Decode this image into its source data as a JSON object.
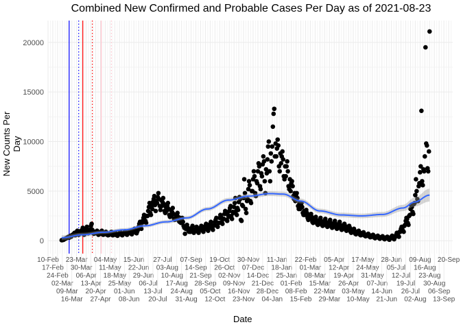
{
  "chart_data": {
    "type": "scatter",
    "title": "Combined New Confirmed and Probable Cases Per Day as of 2021-08-23",
    "xlabel": "Date",
    "ylabel": "New Counts Per Day",
    "xlim": [
      "2020-02-10",
      "2021-09-26"
    ],
    "ylim": [
      -1300,
      22200
    ],
    "yticks": [
      0,
      5000,
      10000,
      15000,
      20000
    ],
    "xticks": [
      "2020-02-10",
      "2020-02-17",
      "2020-02-24",
      "2020-03-02",
      "2020-03-09",
      "2020-03-16",
      "2020-03-23",
      "2020-03-30",
      "2020-04-06",
      "2020-04-13",
      "2020-04-20",
      "2020-04-27",
      "2020-05-04",
      "2020-05-11",
      "2020-05-18",
      "2020-05-25",
      "2020-06-01",
      "2020-06-08",
      "2020-06-15",
      "2020-06-22",
      "2020-06-29",
      "2020-07-06",
      "2020-07-13",
      "2020-07-20",
      "2020-07-27",
      "2020-08-03",
      "2020-08-10",
      "2020-08-17",
      "2020-08-24",
      "2020-08-31",
      "2020-09-07",
      "2020-09-14",
      "2020-09-21",
      "2020-09-28",
      "2020-10-05",
      "2020-10-12",
      "2020-10-19",
      "2020-10-26",
      "2020-11-02",
      "2020-11-09",
      "2020-11-16",
      "2020-11-23",
      "2020-11-30",
      "2020-12-07",
      "2020-12-14",
      "2020-12-21",
      "2020-12-28",
      "2021-01-04",
      "2021-01-11",
      "2021-01-18",
      "2021-01-25",
      "2021-02-01",
      "2021-02-08",
      "2021-02-15",
      "2021-02-22",
      "2021-03-01",
      "2021-03-08",
      "2021-03-15",
      "2021-03-22",
      "2021-03-29",
      "2021-04-05",
      "2021-04-12",
      "2021-04-19",
      "2021-04-26",
      "2021-05-03",
      "2021-05-10",
      "2021-05-17",
      "2021-05-24",
      "2021-05-31",
      "2021-06-07",
      "2021-06-14",
      "2021-06-21",
      "2021-06-28",
      "2021-07-05",
      "2021-07-12",
      "2021-07-19",
      "2021-07-26",
      "2021-08-02",
      "2021-08-09",
      "2021-08-16",
      "2021-08-23",
      "2021-08-30",
      "2021-09-06",
      "2021-09-13",
      "2021-09-20"
    ],
    "month_names": [
      "Jan",
      "Feb",
      "Mar",
      "Apr",
      "May",
      "Jun",
      "Jul",
      "Aug",
      "Sep",
      "Oct",
      "Nov",
      "Dec"
    ],
    "grid": true,
    "point_color": "#000000",
    "trend_color": "#3366FF",
    "band_color": "#999999",
    "weeks": [
      {
        "week_of": "2020-03-01",
        "daily": [
          50,
          60,
          80,
          100,
          150,
          200,
          220
        ]
      },
      {
        "week_of": "2020-03-08",
        "daily": [
          250,
          300,
          350,
          400,
          300,
          450,
          500
        ]
      },
      {
        "week_of": "2020-03-15",
        "daily": [
          400,
          500,
          600,
          650,
          700,
          800,
          550
        ]
      },
      {
        "week_of": "2020-03-22",
        "daily": [
          700,
          900,
          1000,
          850,
          600,
          750,
          950
        ]
      },
      {
        "week_of": "2020-03-29",
        "daily": [
          800,
          900,
          1100,
          1300,
          700,
          600,
          1000
        ]
      },
      {
        "week_of": "2020-04-05",
        "daily": [
          900,
          1200,
          1400,
          1000,
          750,
          800,
          1100
        ]
      },
      {
        "week_of": "2020-04-12",
        "daily": [
          900,
          1500,
          1700,
          1100,
          800,
          700,
          900
        ]
      },
      {
        "week_of": "2020-04-19",
        "daily": [
          750,
          800,
          900,
          1000,
          700,
          600,
          850
        ]
      },
      {
        "week_of": "2020-04-26",
        "daily": [
          800,
          700,
          900,
          1000,
          650,
          600,
          700
        ]
      },
      {
        "week_of": "2020-05-03",
        "daily": [
          650,
          750,
          900,
          800,
          600,
          550,
          700
        ]
      },
      {
        "week_of": "2020-05-10",
        "daily": [
          600,
          700,
          800,
          900,
          650,
          550,
          600
        ]
      },
      {
        "week_of": "2020-05-17",
        "daily": [
          600,
          750,
          850,
          700,
          550,
          500,
          650
        ]
      },
      {
        "week_of": "2020-05-24",
        "daily": [
          650,
          700,
          900,
          800,
          600,
          550,
          700
        ]
      },
      {
        "week_of": "2020-05-31",
        "daily": [
          700,
          800,
          950,
          850,
          650,
          600,
          750
        ]
      },
      {
        "week_of": "2020-06-07",
        "daily": [
          800,
          900,
          1000,
          950,
          700,
          650,
          850
        ]
      },
      {
        "week_of": "2020-06-14",
        "daily": [
          900,
          1100,
          1200,
          1000,
          800,
          750,
          950
        ]
      },
      {
        "week_of": "2020-06-21",
        "daily": [
          1100,
          1400,
          1700,
          1900,
          1500,
          1200,
          1800
        ]
      },
      {
        "week_of": "2020-06-28",
        "daily": [
          2000,
          2300,
          2600,
          2400,
          2000,
          1800,
          2500
        ]
      },
      {
        "week_of": "2020-07-05",
        "daily": [
          2500,
          3000,
          3400,
          3800,
          2800,
          2600,
          3500
        ]
      },
      {
        "week_of": "2020-07-12",
        "daily": [
          3200,
          3900,
          4200,
          4500,
          3600,
          3000,
          4000
        ]
      },
      {
        "week_of": "2020-07-19",
        "daily": [
          3800,
          4400,
          4800,
          4200,
          3500,
          3100,
          4100
        ]
      },
      {
        "week_of": "2020-07-26",
        "daily": [
          3500,
          3900,
          4300,
          3700,
          3000,
          2800,
          3400
        ]
      },
      {
        "week_of": "2020-08-02",
        "daily": [
          3000,
          3500,
          3800,
          3200,
          2600,
          2400,
          3100
        ]
      },
      {
        "week_of": "2020-08-09",
        "daily": [
          2500,
          2900,
          3300,
          2700,
          2200,
          2100,
          2600
        ]
      },
      {
        "week_of": "2020-08-16",
        "daily": [
          2300,
          2600,
          2800,
          2400,
          2000,
          1900,
          2300
        ]
      },
      {
        "week_of": "2020-08-23",
        "daily": [
          1800,
          2100,
          2300,
          1900,
          1500,
          1300,
          700
        ]
      },
      {
        "week_of": "2020-08-30",
        "daily": [
          1200,
          1400,
          1600,
          1300,
          1000,
          900,
          1200
        ]
      },
      {
        "week_of": "2020-09-06",
        "daily": [
          900,
          1100,
          1300,
          1500,
          1000,
          800,
          1100
        ]
      },
      {
        "week_of": "2020-09-13",
        "daily": [
          1000,
          1200,
          1400,
          1300,
          900,
          800,
          1100
        ]
      },
      {
        "week_of": "2020-09-20",
        "daily": [
          1100,
          1300,
          1500,
          1400,
          1000,
          900,
          1200
        ]
      },
      {
        "week_of": "2020-09-27",
        "daily": [
          1200,
          1500,
          1700,
          1500,
          1100,
          1000,
          1300
        ]
      },
      {
        "week_of": "2020-10-04",
        "daily": [
          1400,
          1700,
          1900,
          1600,
          1200,
          1100,
          1500
        ]
      },
      {
        "week_of": "2020-10-11",
        "daily": [
          1600,
          1900,
          2100,
          2300,
          1500,
          1400,
          1800
        ]
      },
      {
        "week_of": "2020-10-18",
        "daily": [
          1800,
          2300,
          2600,
          2400,
          1900,
          1700,
          2200
        ]
      },
      {
        "week_of": "2020-10-25",
        "daily": [
          2200,
          2700,
          3000,
          2800,
          2100,
          2000,
          2600
        ]
      },
      {
        "week_of": "2020-11-01",
        "daily": [
          2400,
          3000,
          3300,
          3500,
          2500,
          2200,
          2900
        ]
      },
      {
        "week_of": "2020-11-08",
        "daily": [
          2800,
          3400,
          3800,
          4300,
          3000,
          2600,
          3300
        ]
      },
      {
        "week_of": "2020-11-15",
        "daily": [
          3100,
          3900,
          4400,
          4200,
          2100,
          2000,
          3600
        ]
      },
      {
        "week_of": "2020-11-22",
        "daily": [
          3500,
          4300,
          6200,
          4800,
          3200,
          2800,
          4000
        ]
      },
      {
        "week_of": "2020-11-29",
        "daily": [
          4200,
          5200,
          6000,
          5600,
          4000,
          3800,
          5000
        ]
      },
      {
        "week_of": "2020-12-06",
        "daily": [
          5000,
          6200,
          7000,
          6500,
          4800,
          4500,
          6000
        ]
      },
      {
        "week_of": "2020-12-13",
        "daily": [
          5800,
          7000,
          7800,
          7500,
          5500,
          5200,
          6800
        ]
      },
      {
        "week_of": "2020-12-20",
        "daily": [
          6500,
          7700,
          8500,
          8000,
          6000,
          4800,
          7200
        ]
      },
      {
        "week_of": "2020-12-27",
        "daily": [
          6800,
          8200,
          9500,
          10000,
          7000,
          6000,
          8800
        ]
      },
      {
        "week_of": "2021-01-03",
        "daily": [
          8000,
          9500,
          11500,
          12800,
          13300,
          8500,
          9800
        ]
      },
      {
        "week_of": "2021-01-10",
        "daily": [
          8500,
          9300,
          10200,
          9600,
          7500,
          7000,
          8800
        ]
      },
      {
        "week_of": "2021-01-17",
        "daily": [
          7800,
          8500,
          9000,
          8200,
          6500,
          6200,
          7500
        ]
      },
      {
        "week_of": "2021-01-24",
        "daily": [
          6500,
          7500,
          8000,
          7000,
          5500,
          5200,
          6200
        ]
      },
      {
        "week_of": "2021-01-31",
        "daily": [
          5000,
          5800,
          6000,
          5500,
          4500,
          4200,
          4800
        ]
      },
      {
        "week_of": "2021-02-07",
        "daily": [
          4000,
          4500,
          4800,
          4300,
          3500,
          3200,
          3800
        ]
      },
      {
        "week_of": "2021-02-14",
        "daily": [
          3200,
          3600,
          3800,
          3400,
          2800,
          2600,
          3000
        ]
      },
      {
        "week_of": "2021-02-21",
        "daily": [
          2600,
          2900,
          3100,
          2800,
          2300,
          2100,
          2500
        ]
      },
      {
        "week_of": "2021-02-28",
        "daily": [
          2200,
          2500,
          2700,
          2400,
          1900,
          1800,
          2100
        ]
      },
      {
        "week_of": "2021-03-07",
        "daily": [
          1900,
          2200,
          2400,
          2100,
          1700,
          1600,
          1900
        ]
      },
      {
        "week_of": "2021-03-14",
        "daily": [
          1800,
          2100,
          2300,
          2000,
          1600,
          1500,
          1800
        ]
      },
      {
        "week_of": "2021-03-21",
        "daily": [
          1700,
          2000,
          2200,
          1900,
          1500,
          1400,
          1700
        ]
      },
      {
        "week_of": "2021-03-28",
        "daily": [
          1600,
          1900,
          2100,
          1800,
          1400,
          1300,
          1600
        ]
      },
      {
        "week_of": "2021-04-04",
        "daily": [
          1500,
          1800,
          2000,
          1700,
          1300,
          1200,
          1500
        ]
      },
      {
        "week_of": "2021-04-11",
        "daily": [
          1400,
          1700,
          1900,
          1600,
          1200,
          1100,
          1400
        ]
      },
      {
        "week_of": "2021-04-18",
        "daily": [
          1300,
          1500,
          1700,
          1500,
          1100,
          1000,
          1300
        ]
      },
      {
        "week_of": "2021-04-25",
        "daily": [
          1100,
          1300,
          1500,
          1300,
          900,
          800,
          1100
        ]
      },
      {
        "week_of": "2021-05-02",
        "daily": [
          900,
          1100,
          1200,
          1000,
          700,
          650,
          900
        ]
      },
      {
        "week_of": "2021-05-09",
        "daily": [
          750,
          900,
          1000,
          850,
          600,
          550,
          750
        ]
      },
      {
        "week_of": "2021-05-16",
        "daily": [
          600,
          750,
          850,
          700,
          500,
          450,
          600
        ]
      },
      {
        "week_of": "2021-05-23",
        "daily": [
          500,
          600,
          700,
          600,
          400,
          350,
          500
        ]
      },
      {
        "week_of": "2021-05-30",
        "daily": [
          400,
          500,
          600,
          500,
          300,
          250,
          400
        ]
      },
      {
        "week_of": "2021-06-06",
        "daily": [
          350,
          450,
          500,
          400,
          250,
          200,
          350
        ]
      },
      {
        "week_of": "2021-06-13",
        "daily": [
          300,
          400,
          450,
          350,
          200,
          150,
          300
        ]
      },
      {
        "week_of": "2021-06-20",
        "daily": [
          250,
          350,
          400,
          300,
          150,
          100,
          250
        ]
      },
      {
        "week_of": "2021-06-27",
        "daily": [
          300,
          400,
          500,
          350,
          200,
          150,
          400
        ]
      },
      {
        "week_of": "2021-07-04",
        "daily": [
          400,
          600,
          800,
          700,
          500,
          400,
          900
        ]
      },
      {
        "week_of": "2021-07-11",
        "daily": [
          900,
          1200,
          1400,
          1300,
          1000,
          900,
          1500
        ]
      },
      {
        "week_of": "2021-07-18",
        "daily": [
          1600,
          2000,
          2300,
          2200,
          1800,
          1600,
          2500
        ]
      },
      {
        "week_of": "2021-07-25",
        "daily": [
          2600,
          3200,
          3600,
          3400,
          2900,
          2700,
          3700
        ]
      },
      {
        "week_of": "2021-08-01",
        "daily": [
          3800,
          4600,
          6200,
          5000,
          4200,
          4000,
          5500
        ]
      },
      {
        "week_of": "2021-08-08",
        "daily": [
          5800,
          6900,
          7500,
          13100,
          6000,
          5600,
          7200
        ]
      },
      {
        "week_of": "2021-08-15",
        "daily": [
          7000,
          8500,
          19500,
          9800,
          9600,
          7300,
          7000
        ]
      },
      {
        "week_of": "2021-08-22",
        "daily": [
          9000,
          21100
        ]
      }
    ],
    "trend": [
      {
        "date": "2020-03-01",
        "value": 300,
        "se": 250
      },
      {
        "date": "2020-04-01",
        "value": 600,
        "se": 200
      },
      {
        "date": "2020-05-01",
        "value": 850,
        "se": 180
      },
      {
        "date": "2020-06-01",
        "value": 1100,
        "se": 170
      },
      {
        "date": "2020-07-01",
        "value": 1500,
        "se": 170
      },
      {
        "date": "2020-08-01",
        "value": 1900,
        "se": 180
      },
      {
        "date": "2020-09-01",
        "value": 2300,
        "se": 180
      },
      {
        "date": "2020-10-01",
        "value": 3200,
        "se": 200
      },
      {
        "date": "2020-11-01",
        "value": 4100,
        "se": 220
      },
      {
        "date": "2020-12-01",
        "value": 4500,
        "se": 230
      },
      {
        "date": "2021-01-01",
        "value": 4750,
        "se": 240
      },
      {
        "date": "2021-01-20",
        "value": 4700,
        "se": 240
      },
      {
        "date": "2021-02-15",
        "value": 4000,
        "se": 240
      },
      {
        "date": "2021-03-15",
        "value": 3000,
        "se": 230
      },
      {
        "date": "2021-04-15",
        "value": 2600,
        "se": 230
      },
      {
        "date": "2021-05-15",
        "value": 2500,
        "se": 230
      },
      {
        "date": "2021-06-15",
        "value": 2650,
        "se": 250
      },
      {
        "date": "2021-07-15",
        "value": 3300,
        "se": 320
      },
      {
        "date": "2021-08-01",
        "value": 3900,
        "se": 450
      },
      {
        "date": "2021-08-23",
        "value": 4600,
        "se": 650
      }
    ],
    "reference_lines": [
      {
        "date": "2020-03-12",
        "color": "#0000FF",
        "style": "solid"
      },
      {
        "date": "2020-03-26",
        "color": "#0000FF",
        "style": "dotted"
      },
      {
        "date": "2020-04-01",
        "color": "#FF0000",
        "style": "solid"
      },
      {
        "date": "2020-04-15",
        "color": "#FF0000",
        "style": "dotted"
      },
      {
        "date": "2020-04-28",
        "color": "#FFC0CB",
        "style": "solid"
      },
      {
        "date": "2020-05-13",
        "color": "#FFC0CB",
        "style": "dotted"
      }
    ]
  }
}
